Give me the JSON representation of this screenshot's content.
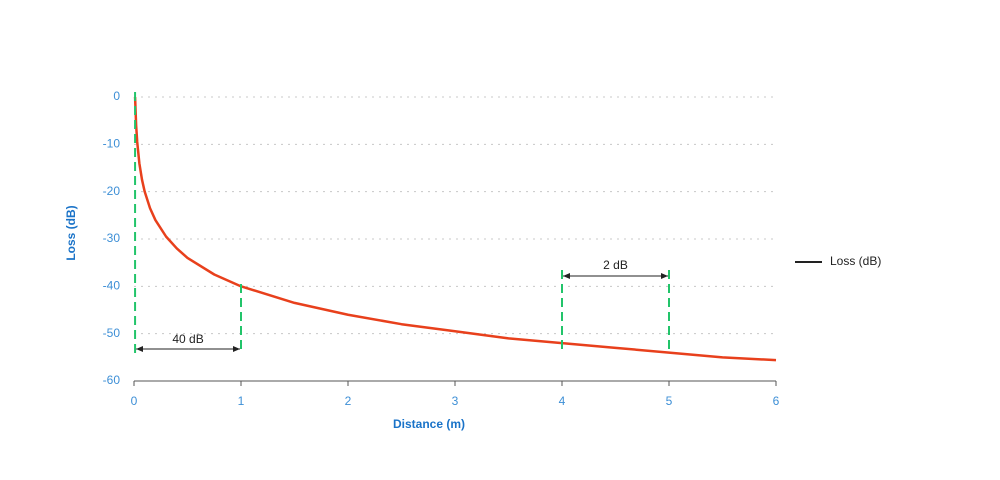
{
  "chart_data": {
    "type": "line",
    "x_label": "Distance (m)",
    "y_label": "Loss (dB)",
    "x": [
      0.01,
      0.02,
      0.03,
      0.05,
      0.075,
      0.1,
      0.15,
      0.2,
      0.3,
      0.4,
      0.5,
      0.75,
      1,
      1.5,
      2,
      2.5,
      3,
      3.5,
      4,
      4.5,
      5,
      5.5,
      6
    ],
    "series": [
      {
        "name": "Loss (dB)",
        "color": "#e8401c",
        "values": [
          0,
          -6,
          -9.5,
          -14,
          -17.5,
          -20,
          -23.5,
          -26,
          -29.5,
          -32,
          -34,
          -37.5,
          -40,
          -43.5,
          -46,
          -48,
          -49.5,
          -51,
          -52,
          -53,
          -54,
          -55,
          -55.6
        ]
      }
    ],
    "xlim": [
      0,
      6
    ],
    "xticks": [
      0,
      1,
      2,
      3,
      4,
      5,
      6
    ],
    "ylim": [
      -60,
      0
    ],
    "yticks": [
      0,
      -10,
      -20,
      -30,
      -40,
      -50,
      -60
    ],
    "grid": true,
    "legend": "right",
    "legend_line_color": "#222222",
    "annotations": [
      {
        "label": "40 dB",
        "x": [
          0.01,
          1
        ]
      },
      {
        "label": "2 dB",
        "x": [
          4,
          5
        ]
      }
    ],
    "annotation_color": "#22c46a"
  }
}
